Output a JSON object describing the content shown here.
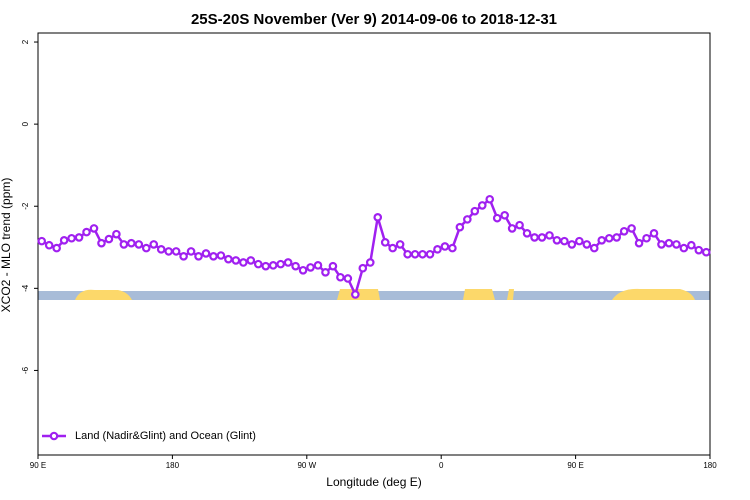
{
  "chart_data": {
    "type": "line",
    "title": "25S-20S November (Ver 9)   2014-09-06 to 2018-12-31",
    "x_label": "Longitude (deg E)",
    "y_label": "XCO2 - MLO trend (ppm)",
    "xlim": [
      90,
      540
    ],
    "ylim": [
      -8.06,
      2.22
    ],
    "xticks": [
      {
        "value": 90,
        "label": "90 E"
      },
      180,
      {
        "value": 270,
        "label": "90 W"
      },
      {
        "value": 360,
        "label": "0"
      },
      {
        "value": 450,
        "label": "90 E"
      },
      {
        "value": 540,
        "label": "180"
      }
    ],
    "yticks": [
      -6,
      -4,
      -2,
      0,
      2
    ],
    "legend": "bottom-left",
    "x": [
      92.5,
      97.5,
      102.5,
      107.5,
      112.5,
      117.5,
      122.5,
      127.5,
      132.5,
      137.5,
      142.5,
      147.5,
      152.5,
      157.5,
      162.5,
      167.5,
      172.5,
      177.5,
      182.5,
      187.5,
      192.5,
      197.5,
      202.5,
      207.5,
      212.5,
      217.5,
      222.5,
      227.5,
      232.5,
      237.5,
      242.5,
      247.5,
      252.5,
      257.5,
      262.5,
      267.5,
      272.5,
      277.5,
      282.5,
      287.5,
      292.5,
      297.5,
      302.5,
      307.5,
      312.5,
      317.5,
      322.5,
      327.5,
      332.5,
      337.5,
      342.5,
      347.5,
      352.5,
      357.5,
      362.5,
      367.5,
      372.5,
      377.5,
      382.5,
      387.5,
      392.5,
      397.5,
      402.5,
      407.5,
      412.5,
      417.5,
      422.5,
      427.5,
      432.5,
      437.5,
      442.5,
      447.5,
      452.5,
      457.5,
      462.5,
      467.5,
      472.5,
      477.5,
      482.5,
      487.5,
      492.5,
      497.5,
      502.5,
      507.5,
      512.5,
      517.5,
      522.5,
      527.5,
      532.5,
      537.5
    ],
    "series": [
      {
        "name": "Land (Nadir&Glint) and Ocean (Glint)",
        "color": "#a020f0",
        "values": [
          -2.85,
          -2.95,
          -3.02,
          -2.83,
          -2.78,
          -2.76,
          -2.63,
          -2.54,
          -2.9,
          -2.8,
          -2.68,
          -2.93,
          -2.9,
          -2.93,
          -3.02,
          -2.93,
          -3.05,
          -3.1,
          -3.1,
          -3.22,
          -3.1,
          -3.22,
          -3.15,
          -3.22,
          -3.2,
          -3.29,
          -3.32,
          -3.37,
          -3.32,
          -3.41,
          -3.46,
          -3.44,
          -3.41,
          -3.37,
          -3.46,
          -3.56,
          -3.49,
          -3.44,
          -3.61,
          -3.46,
          -3.73,
          -3.76,
          -4.15,
          -3.51,
          -3.37,
          -2.27,
          -2.88,
          -3.02,
          -2.93,
          -3.17,
          -3.17,
          -3.17,
          -3.17,
          -3.05,
          -2.98,
          -3.02,
          -2.51,
          -2.32,
          -2.12,
          -1.98,
          -1.83,
          -2.29,
          -2.22,
          -2.54,
          -2.46,
          -2.66,
          -2.76,
          -2.76,
          -2.71,
          -2.83,
          -2.85,
          -2.93,
          -2.85,
          -2.93,
          -3.02,
          -2.83,
          -2.78,
          -2.76,
          -2.61,
          -2.54,
          -2.9,
          -2.78,
          -2.66,
          -2.93,
          -2.9,
          -2.93,
          -3.02,
          -2.95,
          -3.07,
          -3.12
        ]
      }
    ]
  }
}
